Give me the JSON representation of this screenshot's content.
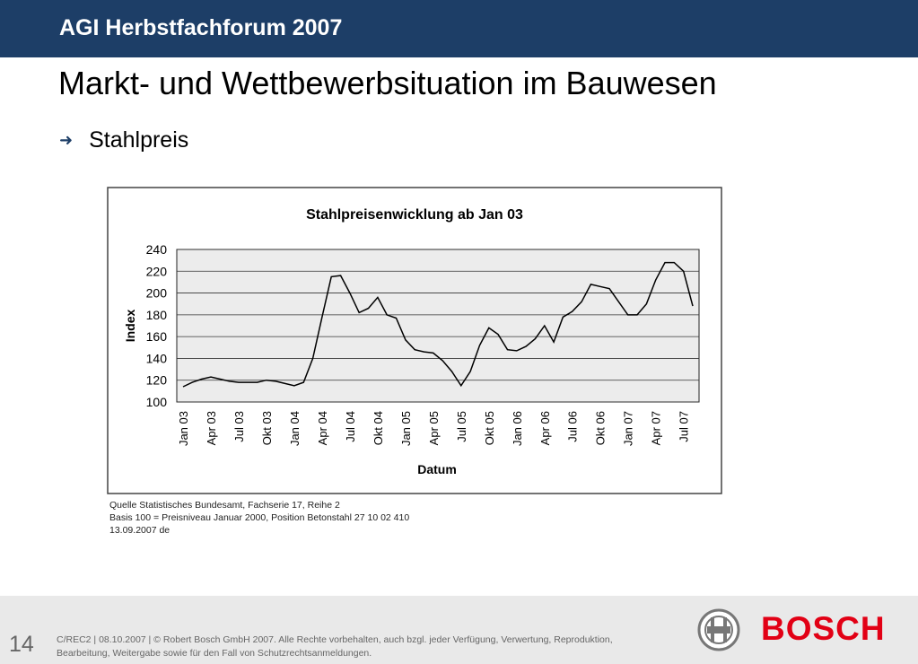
{
  "header": {
    "title": "AGI Herbstfachforum 2007",
    "background": "#1d3e67"
  },
  "slide": {
    "title": "Markt- und Wettbewerbsituation im Bauwesen",
    "bullet": "Stahlpreis",
    "bullet_icon": "arrow-right-icon"
  },
  "chart_data": {
    "type": "line",
    "title": "Stahlpreisenwicklung ab Jan 03",
    "xlabel": "Datum",
    "ylabel": "Index",
    "ylim": [
      100,
      240
    ],
    "y_ticks": [
      100,
      120,
      140,
      160,
      180,
      200,
      220,
      240
    ],
    "grid": true,
    "x_tick_labels": [
      "Jan 03",
      "Apr 03",
      "Jul 03",
      "Okt 03",
      "Jan 04",
      "Apr 04",
      "Jul 04",
      "Okt 04",
      "Jan 05",
      "Apr 05",
      "Jul 05",
      "Okt 05",
      "Jan 06",
      "Apr 06",
      "Jul 06",
      "Okt 06",
      "Jan 07",
      "Apr 07",
      "Jul 07"
    ],
    "x": [
      "Jan 03",
      "Feb 03",
      "Mar 03",
      "Apr 03",
      "May 03",
      "Jun 03",
      "Jul 03",
      "Aug 03",
      "Sep 03",
      "Okt 03",
      "Nov 03",
      "Dec 03",
      "Jan 04",
      "Feb 04",
      "Mar 04",
      "Apr 04",
      "May 04",
      "Jun 04",
      "Jul 04",
      "Aug 04",
      "Sep 04",
      "Okt 04",
      "Nov 04",
      "Dec 04",
      "Jan 05",
      "Feb 05",
      "Mar 05",
      "Apr 05",
      "May 05",
      "Jun 05",
      "Jul 05",
      "Aug 05",
      "Sep 05",
      "Okt 05",
      "Nov 05",
      "Dec 05",
      "Jan 06",
      "Feb 06",
      "Mar 06",
      "Apr 06",
      "May 06",
      "Jun 06",
      "Jul 06",
      "Aug 06",
      "Sep 06",
      "Okt 06",
      "Nov 06",
      "Dec 06",
      "Jan 07",
      "Feb 07",
      "Mar 07",
      "Apr 07",
      "May 07",
      "Jun 07",
      "Jul 07",
      "Aug 07"
    ],
    "series": [
      {
        "values": [
          114,
          118,
          121,
          123,
          121,
          119,
          118,
          118,
          118,
          120,
          119,
          117,
          115,
          118,
          140,
          178,
          215,
          216,
          200,
          182,
          186,
          196,
          180,
          177,
          157,
          148,
          146,
          145,
          138,
          128,
          115,
          128,
          152,
          168,
          162,
          148,
          147,
          151,
          158,
          170,
          155,
          178,
          183,
          192,
          208,
          206,
          204,
          192,
          180,
          180,
          190,
          212,
          228,
          228,
          220,
          188
        ]
      }
    ],
    "line_color": "#000000"
  },
  "source": {
    "line1": "Quelle Statistisches Bundesamt, Fachserie 17, Reihe 2",
    "line2": "Basis 100 = Preisniveau Januar 2000, Position Betonstahl 27 10 02 410",
    "line3": "13.09.2007 de"
  },
  "footer": {
    "page_number": "14",
    "line1": "C/REC2 | 08.10.2007 | © Robert Bosch GmbH 2007. Alle Rechte vorbehalten, auch bzgl. jeder Verfügung, Verwertung, Reproduktion,",
    "line2": "Bearbeitung, Weitergabe sowie für den Fall von Schutzrechtsanmeldungen.",
    "brand": "BOSCH",
    "brand_color": "#e20015"
  }
}
